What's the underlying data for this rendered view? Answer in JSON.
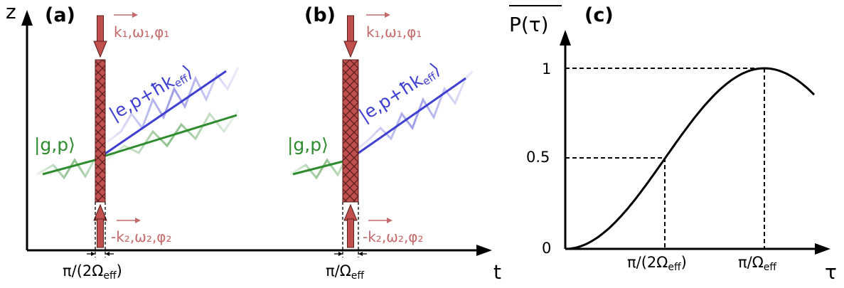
{
  "panels": {
    "a": {
      "label": "(a)",
      "axis_z": "z",
      "beam_top": "k₁,ω₁,φ₁",
      "beam_bottom": "-k₂,ω₂,φ₂",
      "state_ground": "|g,p⟩",
      "state_excited": "|e,p+ħk",
      "state_excited_sub": "eff",
      "pulse_duration": "π/(2Ω",
      "pulse_duration_sub": "eff",
      "pulse_duration_close": ")"
    },
    "b": {
      "label": "(b)",
      "beam_top": "k₁,ω₁,φ₁",
      "beam_bottom": "-k₂,ω₂,φ₂",
      "state_ground": "|g,p⟩",
      "state_excited": "|e,p+ħk",
      "state_excited_sub": "eff",
      "pulse_duration": "π/Ω",
      "pulse_duration_sub": "eff",
      "axis_t": "t"
    },
    "c": {
      "label": "(c)",
      "ylabel": "P(τ)",
      "xlabel": "τ",
      "yticks": [
        "1",
        "0.5",
        "0"
      ],
      "xtick1": "π/(2Ω",
      "xtick1_sub": "eff",
      "xtick1_close": ")",
      "xtick2": "π/Ω",
      "xtick2_sub": "eff"
    }
  },
  "colors": {
    "beam": "#c46a6a",
    "pulse": "#c0504d",
    "ground": "#2e8b2e",
    "excited": "#3f3fd0"
  }
}
